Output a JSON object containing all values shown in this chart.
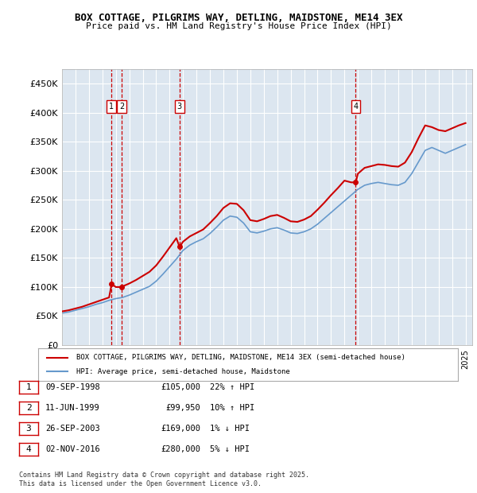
{
  "title": "BOX COTTAGE, PILGRIMS WAY, DETLING, MAIDSTONE, ME14 3EX",
  "subtitle": "Price paid vs. HM Land Registry's House Price Index (HPI)",
  "background_color": "#dce6f0",
  "plot_bg_color": "#dce6f0",
  "ylim": [
    0,
    475000
  ],
  "yticks": [
    0,
    50000,
    100000,
    150000,
    200000,
    250000,
    300000,
    350000,
    400000,
    450000
  ],
  "ytick_labels": [
    "£0",
    "£50K",
    "£100K",
    "£150K",
    "£200K",
    "£250K",
    "£300K",
    "£350K",
    "£400K",
    "£450K"
  ],
  "xlim_start": 1995.0,
  "xlim_end": 2025.5,
  "sale_dates": [
    1998.69,
    1999.44,
    2003.74,
    2016.84
  ],
  "sale_prices": [
    105000,
    99950,
    169000,
    280000
  ],
  "sale_labels": [
    "1",
    "2",
    "3",
    "4"
  ],
  "vline_color": "#cc0000",
  "vline_style": "dashed",
  "red_line_color": "#cc0000",
  "blue_line_color": "#6699cc",
  "legend_label_red": "BOX COTTAGE, PILGRIMS WAY, DETLING, MAIDSTONE, ME14 3EX (semi-detached house)",
  "legend_label_blue": "HPI: Average price, semi-detached house, Maidstone",
  "table_entries": [
    {
      "num": "1",
      "date": "09-SEP-1998",
      "price": "£105,000",
      "hpi": "22% ↑ HPI"
    },
    {
      "num": "2",
      "date": "11-JUN-1999",
      "price": "£99,950",
      "hpi": "10% ↑ HPI"
    },
    {
      "num": "3",
      "date": "26-SEP-2003",
      "price": "£169,000",
      "hpi": "1% ↓ HPI"
    },
    {
      "num": "4",
      "date": "02-NOV-2016",
      "price": "£280,000",
      "hpi": "5% ↓ HPI"
    }
  ],
  "footer": "Contains HM Land Registry data © Crown copyright and database right 2025.\nThis data is licensed under the Open Government Licence v3.0.",
  "hpi_years": [
    1995.0,
    1995.5,
    1996.0,
    1996.5,
    1997.0,
    1997.5,
    1998.0,
    1998.5,
    1999.0,
    1999.5,
    2000.0,
    2000.5,
    2001.0,
    2001.5,
    2002.0,
    2002.5,
    2003.0,
    2003.5,
    2004.0,
    2004.5,
    2005.0,
    2005.5,
    2006.0,
    2006.5,
    2007.0,
    2007.5,
    2008.0,
    2008.5,
    2009.0,
    2009.5,
    2010.0,
    2010.5,
    2011.0,
    2011.5,
    2012.0,
    2012.5,
    2013.0,
    2013.5,
    2014.0,
    2014.5,
    2015.0,
    2015.5,
    2016.0,
    2016.5,
    2017.0,
    2017.5,
    2018.0,
    2018.5,
    2019.0,
    2019.5,
    2020.0,
    2020.5,
    2021.0,
    2021.5,
    2022.0,
    2022.5,
    2023.0,
    2023.5,
    2024.0,
    2024.5,
    2025.0
  ],
  "hpi_values": [
    55000,
    57000,
    60000,
    63000,
    66000,
    70000,
    73000,
    77000,
    80000,
    82000,
    86000,
    91000,
    96000,
    101000,
    110000,
    122000,
    135000,
    148000,
    163000,
    172000,
    178000,
    183000,
    192000,
    203000,
    215000,
    222000,
    220000,
    210000,
    195000,
    193000,
    196000,
    200000,
    202000,
    198000,
    193000,
    192000,
    195000,
    200000,
    208000,
    218000,
    228000,
    238000,
    248000,
    258000,
    268000,
    275000,
    278000,
    280000,
    278000,
    276000,
    275000,
    280000,
    295000,
    315000,
    335000,
    340000,
    335000,
    330000,
    335000,
    340000,
    345000
  ],
  "red_years": [
    1995.0,
    1995.5,
    1996.0,
    1996.5,
    1997.0,
    1997.5,
    1998.0,
    1998.5,
    1998.69,
    1999.0,
    1999.44,
    1999.5,
    2000.0,
    2000.5,
    2001.0,
    2001.5,
    2002.0,
    2002.5,
    2003.0,
    2003.5,
    2003.74,
    2004.0,
    2004.5,
    2005.0,
    2005.5,
    2006.0,
    2006.5,
    2007.0,
    2007.5,
    2008.0,
    2008.5,
    2009.0,
    2009.5,
    2010.0,
    2010.5,
    2011.0,
    2011.5,
    2012.0,
    2012.5,
    2013.0,
    2013.5,
    2014.0,
    2014.5,
    2015.0,
    2015.5,
    2016.0,
    2016.5,
    2016.84,
    2017.0,
    2017.5,
    2018.0,
    2018.5,
    2019.0,
    2019.5,
    2020.0,
    2020.5,
    2021.0,
    2021.5,
    2022.0,
    2022.5,
    2023.0,
    2023.5,
    2024.0,
    2024.5,
    2025.0
  ],
  "red_values": [
    58000,
    60000,
    63000,
    66000,
    70000,
    74000,
    78000,
    82000,
    105000,
    99950,
    99950,
    101000,
    106000,
    112000,
    119000,
    126000,
    137000,
    152000,
    168000,
    184000,
    169000,
    178000,
    187000,
    193000,
    199000,
    210000,
    222000,
    236000,
    244000,
    243000,
    232000,
    215000,
    213000,
    217000,
    222000,
    224000,
    219000,
    213000,
    212000,
    216000,
    222000,
    233000,
    245000,
    258000,
    270000,
    283000,
    280000,
    280000,
    295000,
    305000,
    308000,
    311000,
    310000,
    308000,
    307000,
    314000,
    332000,
    356000,
    378000,
    375000,
    370000,
    368000,
    373000,
    378000,
    382000
  ]
}
